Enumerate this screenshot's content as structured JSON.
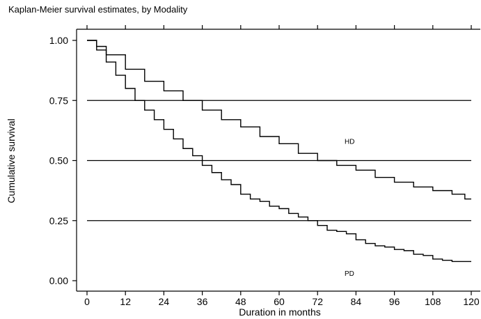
{
  "chart_data": {
    "type": "line",
    "title": "Kaplan-Meier survival estimates, by Modality",
    "xlabel": "Duration in months",
    "ylabel": "Cumulative survival",
    "xlim": [
      0,
      120
    ],
    "ylim": [
      0,
      1
    ],
    "xticks": [
      0,
      12,
      24,
      36,
      48,
      60,
      72,
      84,
      96,
      108,
      120
    ],
    "xtick_labels": [
      "0",
      "12",
      "24",
      "36",
      "48",
      "60",
      "72",
      "84",
      "96",
      "108",
      "120"
    ],
    "yticks": [
      0,
      0.25,
      0.5,
      0.75,
      1
    ],
    "ytick_labels": [
      "0.00",
      "0.25",
      "0.50",
      "0.75",
      "1.00"
    ],
    "grid_y": [
      0.25,
      0.5,
      0.75
    ],
    "legend": "none",
    "series": [
      {
        "name": "HD",
        "label_pos": [
          80,
          0.57
        ],
        "x": [
          0,
          3,
          6,
          12,
          18,
          24,
          30,
          36,
          42,
          48,
          54,
          60,
          66,
          72,
          78,
          84,
          90,
          96,
          102,
          108,
          114,
          118,
          120
        ],
        "y": [
          1.0,
          0.975,
          0.94,
          0.88,
          0.83,
          0.79,
          0.75,
          0.71,
          0.67,
          0.64,
          0.6,
          0.57,
          0.53,
          0.5,
          0.48,
          0.46,
          0.43,
          0.41,
          0.39,
          0.375,
          0.36,
          0.34,
          0.34
        ]
      },
      {
        "name": "PD",
        "label_pos": [
          80,
          0.02
        ],
        "x": [
          0,
          3,
          6,
          9,
          12,
          15,
          18,
          21,
          24,
          27,
          30,
          33,
          36,
          39,
          42,
          45,
          48,
          51,
          54,
          57,
          60,
          63,
          66,
          69,
          72,
          75,
          78,
          81,
          84,
          87,
          90,
          93,
          96,
          99,
          102,
          105,
          108,
          111,
          114,
          117,
          120
        ],
        "y": [
          1.0,
          0.96,
          0.91,
          0.855,
          0.8,
          0.75,
          0.71,
          0.67,
          0.63,
          0.59,
          0.55,
          0.52,
          0.48,
          0.45,
          0.42,
          0.4,
          0.36,
          0.34,
          0.33,
          0.31,
          0.3,
          0.28,
          0.265,
          0.25,
          0.23,
          0.21,
          0.205,
          0.195,
          0.17,
          0.155,
          0.145,
          0.14,
          0.13,
          0.125,
          0.11,
          0.105,
          0.09,
          0.085,
          0.08,
          0.08,
          0.08
        ]
      }
    ]
  }
}
